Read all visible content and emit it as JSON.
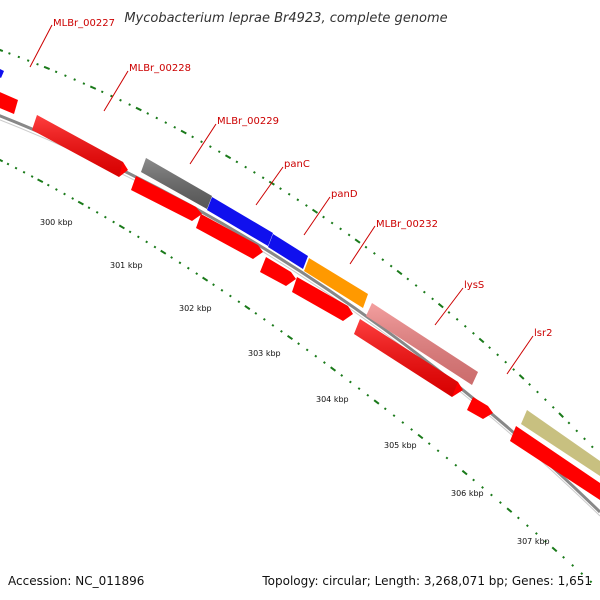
{
  "title": "Mycobacterium leprae Br4923, complete genome",
  "footer": {
    "accession": "Accession: NC_011896",
    "summary": "Topology: circular; Length: 3,268,071 bp; Genes: 1,651"
  },
  "colors": {
    "backbone": "#888888",
    "cds": "#ff0000",
    "tick": "#1a7a1a",
    "label": "#cc0000",
    "gray_gene": "#666666",
    "blue_gene": "#1010ee",
    "orange_gene": "#ff9900",
    "pink_gene": "#f08080",
    "olive_gene": "#c8c080"
  },
  "annotated_genes": [
    {
      "name": "MLBr_00227"
    },
    {
      "name": "MLBr_00228"
    },
    {
      "name": "MLBr_00229"
    },
    {
      "name": "panC"
    },
    {
      "name": "panD"
    },
    {
      "name": "MLBr_00232"
    },
    {
      "name": "lysS"
    },
    {
      "name": "lsr2"
    }
  ],
  "scale_labels": [
    "300 kbp",
    "301 kbp",
    "302 kbp",
    "303 kbp",
    "304 kbp",
    "305 kbp",
    "306 kbp",
    "307 kbp"
  ]
}
